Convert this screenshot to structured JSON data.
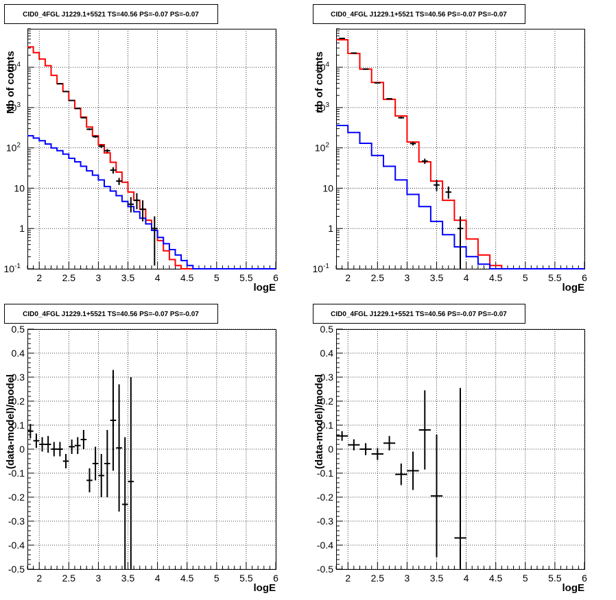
{
  "chart_data": [
    {
      "type": "line",
      "title": "CID0_4FGL J1229.1+5521 TS=40.56 PS=-0.07 PS=-0.07",
      "xlabel": "logE",
      "ylabel": "Nb of counts",
      "xlim": [
        1.8,
        6.0
      ],
      "ylim": [
        0.1,
        90000
      ],
      "yscale": "log",
      "grid": true,
      "xticks": [
        "2",
        "2.5",
        "3",
        "3.5",
        "4",
        "4.5",
        "5",
        "5.5",
        "6"
      ],
      "yticks": [
        {
          "value": 0.1,
          "label": "10^-1"
        },
        {
          "value": 1,
          "label": "1"
        },
        {
          "value": 10,
          "label": "10"
        },
        {
          "value": 100,
          "label": "10^2"
        },
        {
          "value": 1000,
          "label": "10^3"
        },
        {
          "value": 10000,
          "label": "10^4"
        }
      ],
      "bin_edges": [
        1.8,
        1.9,
        2.0,
        2.1,
        2.2,
        2.3,
        2.4,
        2.5,
        2.6,
        2.7,
        2.8,
        2.9,
        3.0,
        3.1,
        3.2,
        3.3,
        3.4,
        3.5,
        3.6,
        3.7,
        3.8,
        3.9,
        4.0,
        4.1,
        4.2,
        4.3,
        4.4,
        4.5,
        4.6,
        4.7,
        4.8,
        4.9,
        5.0,
        5.1,
        5.2,
        5.3,
        5.4,
        5.5,
        5.6,
        5.7,
        5.8,
        5.9,
        6.0
      ],
      "series": [
        {
          "color": "#ff0000",
          "values": [
            32000,
            23000,
            16000,
            11000,
            6300,
            3900,
            2500,
            1500,
            950,
            580,
            330,
            200,
            120,
            75,
            44,
            25,
            14,
            8,
            5,
            3,
            1.6,
            0.9,
            0.5,
            0.28,
            0.17,
            0.12,
            0.1,
            0.1,
            0.1,
            0.1,
            0.1,
            0.1,
            0.1,
            0.1,
            0.1,
            0.1,
            0.1,
            0.1,
            0.1,
            0.1,
            0.1,
            0.1
          ]
        },
        {
          "color": "#0000ff",
          "values": [
            200,
            175,
            150,
            125,
            100,
            85,
            70,
            55,
            45,
            35,
            27,
            21,
            16,
            11,
            8.5,
            6.5,
            4.7,
            3.5,
            2.6,
            1.8,
            1.3,
            0.9,
            0.6,
            0.42,
            0.3,
            0.22,
            0.16,
            0.12,
            0.1,
            0.1,
            0.1,
            0.1,
            0.1,
            0.1,
            0.1,
            0.1,
            0.1,
            0.1,
            0.1,
            0.1,
            0.1,
            0.1
          ]
        }
      ],
      "points": [
        {
          "x": 2.35,
          "y": 3900,
          "ylo": 3800,
          "yhi": 4000
        },
        {
          "x": 2.45,
          "y": 2500,
          "ylo": 2450,
          "yhi": 2550
        },
        {
          "x": 2.55,
          "y": 1500,
          "ylo": 1460,
          "yhi": 1540
        },
        {
          "x": 2.65,
          "y": 950,
          "ylo": 920,
          "yhi": 980
        },
        {
          "x": 2.75,
          "y": 560,
          "ylo": 540,
          "yhi": 580
        },
        {
          "x": 2.85,
          "y": 290,
          "ylo": 275,
          "yhi": 305
        },
        {
          "x": 2.95,
          "y": 190,
          "ylo": 178,
          "yhi": 202
        },
        {
          "x": 3.05,
          "y": 110,
          "ylo": 100,
          "yhi": 120
        },
        {
          "x": 3.15,
          "y": 85,
          "ylo": 77,
          "yhi": 93
        },
        {
          "x": 3.25,
          "y": 28,
          "ylo": 23,
          "yhi": 33
        },
        {
          "x": 3.35,
          "y": 15,
          "ylo": 12,
          "yhi": 18
        },
        {
          "x": 3.55,
          "y": 4,
          "ylo": 2.5,
          "yhi": 6
        },
        {
          "x": 3.65,
          "y": 5,
          "ylo": 3,
          "yhi": 7.5
        },
        {
          "x": 3.75,
          "y": 3,
          "ylo": 1.5,
          "yhi": 5
        },
        {
          "x": 3.95,
          "y": 1,
          "ylo": 0.12,
          "yhi": 2
        }
      ]
    },
    {
      "type": "line",
      "title": "CID0_4FGL J1229.1+5521 TS=40.56 PS=-0.07 PS=-0.07",
      "xlabel": "logE",
      "ylabel": "nb of counts",
      "xlim": [
        1.8,
        6.0
      ],
      "ylim": [
        0.1,
        90000
      ],
      "yscale": "log",
      "grid": true,
      "xticks": [
        "2",
        "2.5",
        "3",
        "3.5",
        "4",
        "4.5",
        "5",
        "5.5",
        "6"
      ],
      "yticks": [
        {
          "value": 0.1,
          "label": "10^-1"
        },
        {
          "value": 1,
          "label": "1"
        },
        {
          "value": 10,
          "label": "10"
        },
        {
          "value": 100,
          "label": "10^2"
        },
        {
          "value": 1000,
          "label": "10^3"
        },
        {
          "value": 10000,
          "label": "10^4"
        }
      ],
      "bin_edges": [
        1.8,
        2.0,
        2.2,
        2.4,
        2.6,
        2.8,
        3.0,
        3.2,
        3.4,
        3.6,
        3.8,
        4.0,
        4.2,
        4.4,
        4.6,
        4.8,
        5.0,
        5.2,
        5.4,
        5.6,
        5.8,
        6.0
      ],
      "series": [
        {
          "color": "#ff0000",
          "values": [
            48000,
            22000,
            9000,
            4200,
            1600,
            620,
            140,
            45,
            15,
            5,
            1.6,
            0.55,
            0.22,
            0.12,
            0.1,
            0.1,
            0.1,
            0.1,
            0.1,
            0.1,
            0.1
          ]
        },
        {
          "color": "#0000ff",
          "values": [
            360,
            240,
            130,
            65,
            35,
            16,
            7,
            3.5,
            1.5,
            0.7,
            0.35,
            0.2,
            0.13,
            0.1,
            0.1,
            0.1,
            0.1,
            0.1,
            0.1,
            0.1,
            0.1
          ]
        }
      ],
      "points": [
        {
          "x": 1.9,
          "y": 52000,
          "ylo": 51000,
          "yhi": 53000
        },
        {
          "x": 2.1,
          "y": 22500,
          "ylo": 22000,
          "yhi": 23000
        },
        {
          "x": 2.3,
          "y": 9000,
          "ylo": 8800,
          "yhi": 9200
        },
        {
          "x": 2.5,
          "y": 4100,
          "ylo": 4000,
          "yhi": 4200
        },
        {
          "x": 2.7,
          "y": 1650,
          "ylo": 1600,
          "yhi": 1700
        },
        {
          "x": 2.9,
          "y": 560,
          "ylo": 530,
          "yhi": 590
        },
        {
          "x": 3.1,
          "y": 128,
          "ylo": 115,
          "yhi": 141
        },
        {
          "x": 3.3,
          "y": 47,
          "ylo": 40,
          "yhi": 54
        },
        {
          "x": 3.5,
          "y": 12,
          "ylo": 8.5,
          "yhi": 16
        },
        {
          "x": 3.7,
          "y": 8,
          "ylo": 5.5,
          "yhi": 11
        },
        {
          "x": 3.9,
          "y": 1,
          "ylo": 0.1,
          "yhi": 2
        }
      ]
    },
    {
      "type": "scatter",
      "title": "CID0_4FGL J1229.1+5521 TS=40.56 PS=-0.07 PS=-0.07",
      "xlabel": "logE",
      "ylabel": "(data-model)/model",
      "xlim": [
        1.8,
        6.0
      ],
      "ylim": [
        -0.5,
        0.5
      ],
      "grid": true,
      "xticks": [
        "2",
        "2.5",
        "3",
        "3.5",
        "4",
        "4.5",
        "5",
        "5.5",
        "6"
      ],
      "yticks": [
        "-0.5",
        "-0.4",
        "-0.3",
        "-0.2",
        "-0.1",
        "0",
        "0.1",
        "0.2",
        "0.3",
        "0.4",
        "0.5"
      ],
      "xerr": 0.05,
      "points": [
        {
          "x": 1.85,
          "y": 0.075,
          "ylo": 0.045,
          "yhi": 0.105
        },
        {
          "x": 1.95,
          "y": 0.035,
          "ylo": 0.005,
          "yhi": 0.065
        },
        {
          "x": 2.05,
          "y": 0.02,
          "ylo": -0.01,
          "yhi": 0.05
        },
        {
          "x": 2.15,
          "y": 0.02,
          "ylo": -0.015,
          "yhi": 0.055
        },
        {
          "x": 2.25,
          "y": 0.0,
          "ylo": -0.03,
          "yhi": 0.03
        },
        {
          "x": 2.35,
          "y": 0.0,
          "ylo": -0.03,
          "yhi": 0.03
        },
        {
          "x": 2.45,
          "y": -0.05,
          "ylo": -0.08,
          "yhi": -0.02
        },
        {
          "x": 2.55,
          "y": 0.01,
          "ylo": -0.02,
          "yhi": 0.04
        },
        {
          "x": 2.65,
          "y": 0.015,
          "ylo": -0.02,
          "yhi": 0.05
        },
        {
          "x": 2.75,
          "y": 0.04,
          "ylo": 0.0,
          "yhi": 0.08
        },
        {
          "x": 2.85,
          "y": -0.13,
          "ylo": -0.18,
          "yhi": -0.08
        },
        {
          "x": 2.95,
          "y": -0.06,
          "ylo": -0.13,
          "yhi": 0.01
        },
        {
          "x": 3.05,
          "y": -0.11,
          "ylo": -0.2,
          "yhi": -0.02
        },
        {
          "x": 3.15,
          "y": -0.06,
          "ylo": -0.2,
          "yhi": 0.08
        },
        {
          "x": 3.25,
          "y": 0.12,
          "ylo": -0.09,
          "yhi": 0.33
        },
        {
          "x": 3.35,
          "y": 0.005,
          "ylo": -0.26,
          "yhi": 0.27
        },
        {
          "x": 3.45,
          "y": -0.23,
          "ylo": -0.5,
          "yhi": 0.05
        },
        {
          "x": 3.55,
          "y": -0.135,
          "ylo": -0.5,
          "yhi": 0.3
        }
      ]
    },
    {
      "type": "scatter",
      "title": "CID0_4FGL J1229.1+5521 TS=40.56 PS=-0.07 PS=-0.07",
      "xlabel": "logE",
      "ylabel": "(data-model)/model",
      "xlim": [
        1.8,
        6.0
      ],
      "ylim": [
        -0.5,
        0.5
      ],
      "grid": true,
      "xticks": [
        "2",
        "2.5",
        "3",
        "3.5",
        "4",
        "4.5",
        "5",
        "5.5",
        "6"
      ],
      "yticks": [
        "-0.5",
        "-0.4",
        "-0.3",
        "-0.2",
        "-0.1",
        "0",
        "0.1",
        "0.2",
        "0.3",
        "0.4",
        "0.5"
      ],
      "xerr": 0.1,
      "points": [
        {
          "x": 1.9,
          "y": 0.055,
          "ylo": 0.035,
          "yhi": 0.075
        },
        {
          "x": 2.1,
          "y": 0.018,
          "ylo": -0.005,
          "yhi": 0.041
        },
        {
          "x": 2.3,
          "y": 0.0,
          "ylo": -0.025,
          "yhi": 0.025
        },
        {
          "x": 2.5,
          "y": -0.02,
          "ylo": -0.045,
          "yhi": 0.005
        },
        {
          "x": 2.7,
          "y": 0.025,
          "ylo": -0.005,
          "yhi": 0.055
        },
        {
          "x": 2.9,
          "y": -0.105,
          "ylo": -0.15,
          "yhi": -0.06
        },
        {
          "x": 3.1,
          "y": -0.09,
          "ylo": -0.17,
          "yhi": -0.01
        },
        {
          "x": 3.3,
          "y": 0.08,
          "ylo": -0.085,
          "yhi": 0.245
        },
        {
          "x": 3.5,
          "y": -0.195,
          "ylo": -0.45,
          "yhi": 0.06
        },
        {
          "x": 3.9,
          "y": -0.37,
          "ylo": -0.5,
          "yhi": 0.255
        }
      ]
    }
  ]
}
